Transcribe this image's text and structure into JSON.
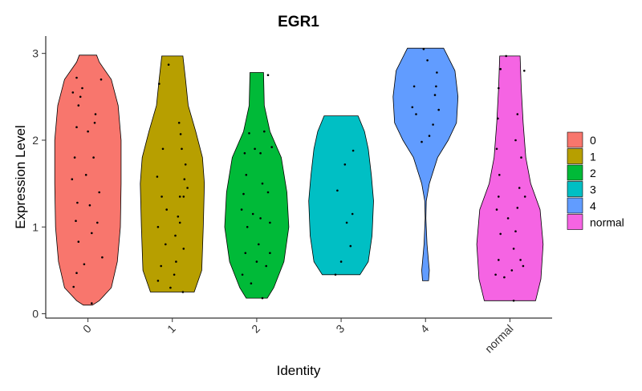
{
  "chart_data": {
    "type": "violin",
    "title": "EGR1",
    "xlabel": "Identity",
    "ylabel": "Expression Level",
    "categories": [
      "0",
      "1",
      "2",
      "3",
      "4",
      "normal"
    ],
    "ylim": [
      -0.05,
      3.2
    ],
    "yticks": [
      0,
      1,
      2,
      3
    ],
    "ytick_labels": [
      "0",
      "1",
      "2",
      "3"
    ],
    "legend_position": "right",
    "grid": false,
    "series": [
      {
        "name": "0",
        "color": "#F8766D",
        "min": 0.1,
        "max": 2.98,
        "profile": [
          [
            0.1,
            0.12
          ],
          [
            0.15,
            0.3
          ],
          [
            0.3,
            0.62
          ],
          [
            0.6,
            0.78
          ],
          [
            1.0,
            0.86
          ],
          [
            1.5,
            0.88
          ],
          [
            2.0,
            0.88
          ],
          [
            2.4,
            0.8
          ],
          [
            2.7,
            0.62
          ],
          [
            2.9,
            0.3
          ],
          [
            2.98,
            0.23
          ]
        ],
        "points": [
          [
            -0.38,
            0.31
          ],
          [
            -0.3,
            0.47
          ],
          [
            -0.25,
            0.83
          ],
          [
            -0.32,
            1.07
          ],
          [
            -0.28,
            1.28
          ],
          [
            -0.42,
            1.55
          ],
          [
            -0.35,
            1.8
          ],
          [
            -0.3,
            2.15
          ],
          [
            -0.25,
            2.4
          ],
          [
            -0.4,
            2.55
          ],
          [
            -0.3,
            2.72
          ],
          [
            -0.1,
            0.57
          ],
          [
            0.1,
            0.93
          ],
          [
            0.05,
            1.25
          ],
          [
            -0.05,
            1.6
          ],
          [
            0.0,
            2.1
          ],
          [
            0.15,
            1.8
          ],
          [
            0.2,
            2.3
          ],
          [
            0.35,
            2.7
          ],
          [
            0.3,
            1.4
          ],
          [
            0.25,
            1.05
          ],
          [
            0.38,
            0.65
          ],
          [
            -0.15,
            2.6
          ],
          [
            0.1,
            0.12
          ],
          [
            -0.2,
            2.5
          ],
          [
            0.18,
            2.2
          ]
        ]
      },
      {
        "name": "1",
        "color": "#B79F00",
        "min": 0.25,
        "max": 2.97,
        "profile": [
          [
            0.25,
            0.58
          ],
          [
            0.5,
            0.78
          ],
          [
            1.0,
            0.82
          ],
          [
            1.5,
            0.85
          ],
          [
            1.8,
            0.8
          ],
          [
            2.1,
            0.62
          ],
          [
            2.4,
            0.42
          ],
          [
            2.7,
            0.35
          ],
          [
            2.97,
            0.28
          ]
        ],
        "points": [
          [
            -0.38,
            0.38
          ],
          [
            -0.3,
            0.55
          ],
          [
            -0.18,
            0.8
          ],
          [
            -0.38,
            1.0
          ],
          [
            -0.28,
            1.35
          ],
          [
            -0.4,
            1.58
          ],
          [
            -0.25,
            1.9
          ],
          [
            -0.35,
            2.65
          ],
          [
            -0.1,
            2.87
          ],
          [
            0.05,
            0.45
          ],
          [
            0.1,
            0.6
          ],
          [
            0.08,
            0.9
          ],
          [
            0.15,
            1.12
          ],
          [
            0.2,
            1.35
          ],
          [
            0.3,
            1.35
          ],
          [
            0.32,
            1.55
          ],
          [
            0.25,
            1.9
          ],
          [
            0.18,
            2.2
          ],
          [
            0.22,
            2.07
          ],
          [
            0.35,
            1.72
          ],
          [
            -0.05,
            0.3
          ],
          [
            0.28,
            0.25
          ],
          [
            0.3,
            0.75
          ],
          [
            -0.15,
            1.2
          ],
          [
            0.2,
            1.05
          ],
          [
            0.4,
            1.45
          ]
        ]
      },
      {
        "name": "2",
        "color": "#00BA38",
        "min": 0.18,
        "max": 2.78,
        "profile": [
          [
            0.18,
            0.28
          ],
          [
            0.3,
            0.45
          ],
          [
            0.6,
            0.72
          ],
          [
            1.0,
            0.85
          ],
          [
            1.4,
            0.8
          ],
          [
            1.8,
            0.65
          ],
          [
            2.1,
            0.35
          ],
          [
            2.4,
            0.2
          ],
          [
            2.78,
            0.18
          ]
        ],
        "points": [
          [
            -0.38,
            0.45
          ],
          [
            -0.3,
            0.7
          ],
          [
            -0.25,
            1.0
          ],
          [
            -0.4,
            1.2
          ],
          [
            -0.35,
            1.38
          ],
          [
            -0.28,
            1.6
          ],
          [
            -0.32,
            1.85
          ],
          [
            -0.2,
            2.08
          ],
          [
            -0.15,
            0.35
          ],
          [
            0.0,
            0.6
          ],
          [
            0.05,
            0.8
          ],
          [
            0.1,
            1.1
          ],
          [
            0.15,
            1.5
          ],
          [
            0.1,
            1.85
          ],
          [
            0.2,
            2.1
          ],
          [
            0.3,
            1.4
          ],
          [
            0.35,
            1.05
          ],
          [
            0.4,
            1.92
          ],
          [
            0.25,
            0.55
          ],
          [
            0.15,
            0.18
          ],
          [
            -0.05,
            1.9
          ],
          [
            0.3,
            2.75
          ],
          [
            -0.1,
            1.15
          ],
          [
            0.35,
            0.7
          ]
        ]
      },
      {
        "name": "3",
        "color": "#00BFC4",
        "min": 0.45,
        "max": 2.28,
        "profile": [
          [
            0.45,
            0.5
          ],
          [
            0.6,
            0.72
          ],
          [
            0.9,
            0.82
          ],
          [
            1.3,
            0.86
          ],
          [
            1.6,
            0.8
          ],
          [
            1.9,
            0.72
          ],
          [
            2.1,
            0.62
          ],
          [
            2.28,
            0.45
          ]
        ],
        "points": [
          [
            -0.1,
            1.42
          ],
          [
            0.1,
            1.72
          ],
          [
            0.15,
            1.05
          ],
          [
            0.3,
            1.15
          ],
          [
            0.25,
            0.78
          ],
          [
            0.32,
            1.88
          ],
          [
            -0.15,
            0.45
          ],
          [
            0.0,
            0.6
          ]
        ]
      },
      {
        "name": "4",
        "color": "#619CFF",
        "min": 0.38,
        "max": 3.06,
        "profile": [
          [
            0.38,
            0.08
          ],
          [
            0.5,
            0.1
          ],
          [
            0.6,
            0.08
          ],
          [
            0.8,
            0.04
          ],
          [
            1.1,
            0.01
          ],
          [
            1.3,
            0.02
          ],
          [
            1.5,
            0.1
          ],
          [
            1.8,
            0.32
          ],
          [
            2.0,
            0.6
          ],
          [
            2.2,
            0.82
          ],
          [
            2.5,
            0.86
          ],
          [
            2.8,
            0.78
          ],
          [
            3.0,
            0.55
          ],
          [
            3.06,
            0.48
          ]
        ],
        "points": [
          [
            -0.35,
            2.38
          ],
          [
            -0.3,
            2.62
          ],
          [
            -0.25,
            2.3
          ],
          [
            -0.1,
            1.98
          ],
          [
            0.1,
            2.05
          ],
          [
            0.25,
            2.52
          ],
          [
            0.3,
            2.78
          ],
          [
            0.35,
            2.35
          ],
          [
            0.05,
            2.92
          ],
          [
            -0.05,
            3.05
          ],
          [
            0.28,
            2.62
          ],
          [
            0.2,
            2.18
          ]
        ]
      },
      {
        "name": "normal",
        "color": "#F564E3",
        "min": 0.15,
        "max": 2.97,
        "profile": [
          [
            0.15,
            0.68
          ],
          [
            0.4,
            0.82
          ],
          [
            0.8,
            0.88
          ],
          [
            1.2,
            0.8
          ],
          [
            1.5,
            0.55
          ],
          [
            1.8,
            0.42
          ],
          [
            2.2,
            0.35
          ],
          [
            2.6,
            0.3
          ],
          [
            2.97,
            0.27
          ]
        ],
        "points": [
          [
            -0.38,
            0.45
          ],
          [
            -0.3,
            0.62
          ],
          [
            -0.25,
            0.92
          ],
          [
            -0.35,
            1.2
          ],
          [
            -0.3,
            1.35
          ],
          [
            -0.28,
            1.6
          ],
          [
            -0.35,
            1.9
          ],
          [
            -0.32,
            2.25
          ],
          [
            -0.3,
            2.6
          ],
          [
            -0.25,
            2.82
          ],
          [
            -0.1,
            2.97
          ],
          [
            0.05,
            0.5
          ],
          [
            0.1,
            0.75
          ],
          [
            0.15,
            0.95
          ],
          [
            0.2,
            1.22
          ],
          [
            0.25,
            1.45
          ],
          [
            0.3,
            1.8
          ],
          [
            0.15,
            2.0
          ],
          [
            0.1,
            0.15
          ],
          [
            0.35,
            0.55
          ],
          [
            0.4,
            1.35
          ],
          [
            0.28,
            0.62
          ],
          [
            -0.15,
            0.42
          ],
          [
            0.2,
            2.3
          ],
          [
            0.38,
            2.8
          ],
          [
            -0.05,
            1.1
          ]
        ]
      }
    ]
  }
}
